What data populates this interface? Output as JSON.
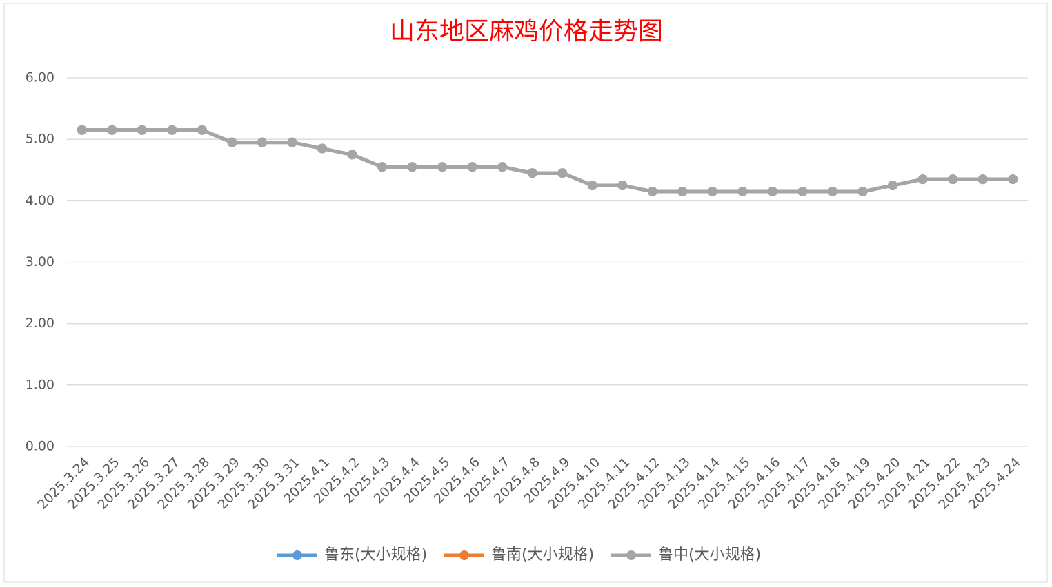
{
  "chart_data": {
    "type": "line",
    "title": "山东地区麻鸡价格走势图",
    "categories": [
      "2025.3.24",
      "2025.3.25",
      "2025.3.26",
      "2025.3.27",
      "2025.3.28",
      "2025.3.29",
      "2025.3.30",
      "2025.3.31",
      "2025.4.1",
      "2025.4.2",
      "2025.4.3",
      "2025.4.4",
      "2025.4.5",
      "2025.4.6",
      "2025.4.7",
      "2025.4.8",
      "2025.4.9",
      "2025.4.10",
      "2025.4.11",
      "2025.4.12",
      "2025.4.13",
      "2025.4.14",
      "2025.4.15",
      "2025.4.16",
      "2025.4.17",
      "2025.4.18",
      "2025.4.19",
      "2025.4.20",
      "2025.4.21",
      "2025.4.22",
      "2025.4.23",
      "2025.4.24"
    ],
    "series": [
      {
        "name": "鲁东(大小规格)",
        "color": "#5b9bd5",
        "values": [
          5.15,
          5.15,
          5.15,
          5.15,
          5.15,
          4.95,
          4.95,
          4.95,
          4.85,
          4.75,
          4.55,
          4.55,
          4.55,
          4.55,
          4.55,
          4.45,
          4.45,
          4.25,
          4.25,
          4.15,
          4.15,
          4.15,
          4.15,
          4.15,
          4.15,
          4.15,
          4.15,
          4.25,
          4.35,
          4.35,
          4.35,
          4.35
        ]
      },
      {
        "name": "鲁南(大小规格)",
        "color": "#ed7d31",
        "values": [
          5.15,
          5.15,
          5.15,
          5.15,
          5.15,
          4.95,
          4.95,
          4.95,
          4.85,
          4.75,
          4.55,
          4.55,
          4.55,
          4.55,
          4.55,
          4.45,
          4.45,
          4.25,
          4.25,
          4.15,
          4.15,
          4.15,
          4.15,
          4.15,
          4.15,
          4.15,
          4.15,
          4.25,
          4.35,
          4.35,
          4.35,
          4.35
        ]
      },
      {
        "name": "鲁中(大小规格)",
        "color": "#a5a5a5",
        "values": [
          5.15,
          5.15,
          5.15,
          5.15,
          5.15,
          4.95,
          4.95,
          4.95,
          4.85,
          4.75,
          4.55,
          4.55,
          4.55,
          4.55,
          4.55,
          4.45,
          4.45,
          4.25,
          4.25,
          4.15,
          4.15,
          4.15,
          4.15,
          4.15,
          4.15,
          4.15,
          4.15,
          4.25,
          4.35,
          4.35,
          4.35,
          4.35
        ]
      }
    ],
    "ylim": [
      0,
      6
    ],
    "yticks": [
      {
        "value": 0,
        "label": "0.00"
      },
      {
        "value": 1,
        "label": "1.00"
      },
      {
        "value": 2,
        "label": "2.00"
      },
      {
        "value": 3,
        "label": "3.00"
      },
      {
        "value": 4,
        "label": "4.00"
      },
      {
        "value": 5,
        "label": "5.00"
      },
      {
        "value": 6,
        "label": "6.00"
      }
    ],
    "grid": true,
    "legend": "bottom"
  }
}
